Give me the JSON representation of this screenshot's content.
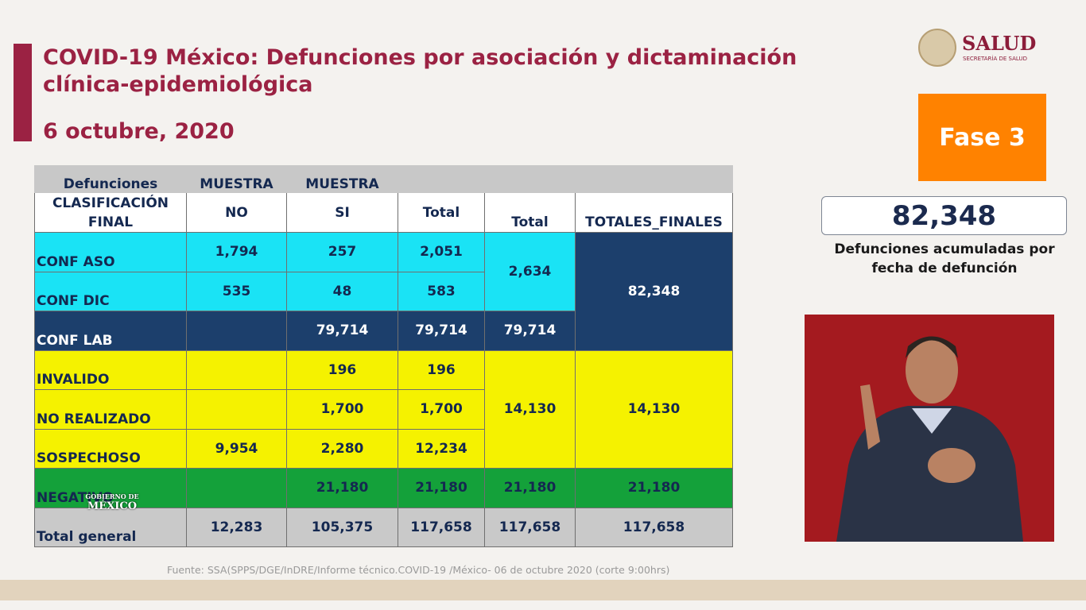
{
  "header": {
    "title": "COVID-19 México: Defunciones por asociación y dictaminación clínica-epidemiológica",
    "date": "6 octubre, 2020"
  },
  "logo": {
    "name": "SALUD",
    "subtitle": "SECRETARÍA DE SALUD"
  },
  "phase": "Fase 3",
  "summary": {
    "value": "82,348",
    "label": "Defunciones acumuladas por fecha de defunción"
  },
  "table": {
    "header_top": [
      "Defunciones",
      "MUESTRA",
      "MUESTRA"
    ],
    "header": [
      "CLASIFICACIÓN FINAL",
      "NO",
      "SI",
      "Total",
      "Total",
      "TOTALES_FINALES"
    ],
    "rows": [
      {
        "label": "CONF ASO",
        "no": "1,794",
        "si": "257",
        "total": "2,051",
        "group_total": "2,634",
        "final": "82,348"
      },
      {
        "label": "CONF DIC",
        "no": "535",
        "si": "48",
        "total": "583"
      },
      {
        "label": "CONF LAB",
        "si": "79,714",
        "total": "79,714",
        "group_total": "79,714"
      },
      {
        "label": "INVALIDO",
        "si": "196",
        "total": "196",
        "group_total": "14,130",
        "final": "14,130"
      },
      {
        "label": "NO REALIZADO",
        "si": "1,700",
        "total": "1,700"
      },
      {
        "label": "SOSPECHOSO",
        "no": "9,954",
        "si": "2,280",
        "total": "12,234"
      },
      {
        "label": "NEGATIVO",
        "si": "21,180",
        "total": "21,180",
        "group_total": "21,180",
        "final": "21,180"
      },
      {
        "label": "Total general",
        "no": "12,283",
        "si": "105,375",
        "total": "117,658",
        "group_total": "117,658",
        "final": "117,658"
      }
    ]
  },
  "source": "Fuente: SSA(SPPS/DGE/InDRE/Informe técnico.COVID-19 /México- 06 de octubre  2020 (corte 9:00hrs)",
  "watermark": {
    "line1": "GOBIERNO DE",
    "line2": "MÉXICO"
  }
}
